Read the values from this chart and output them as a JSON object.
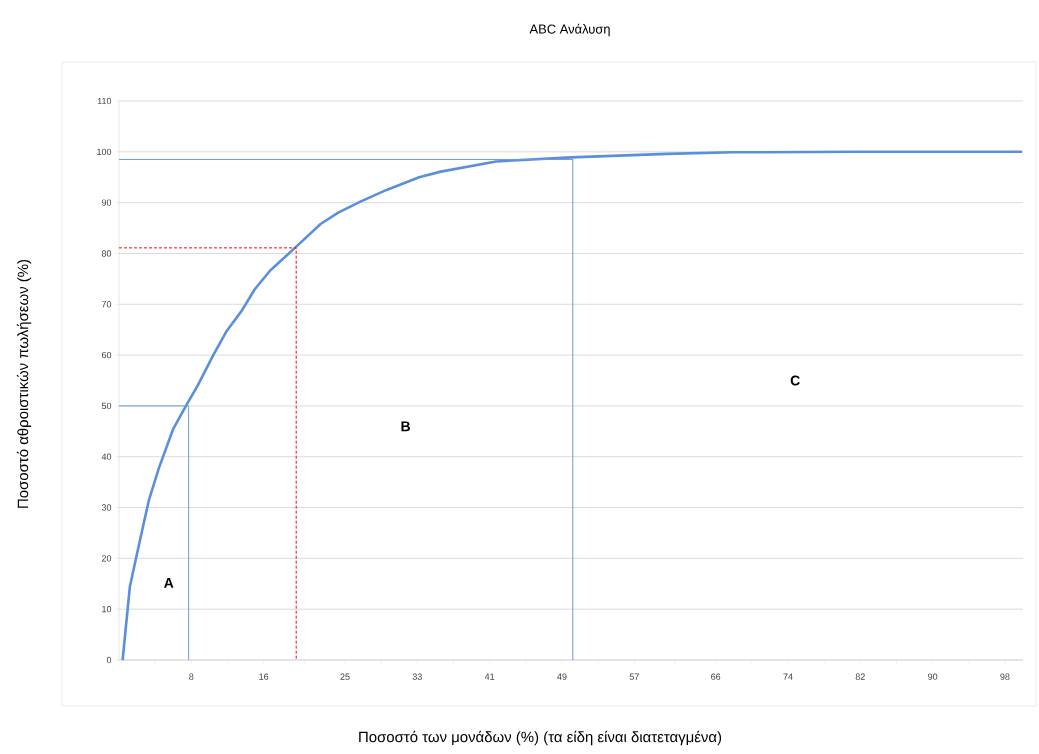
{
  "chart_data": {
    "type": "line",
    "title": "ABC Ανάλυση",
    "xlabel": "Ποσοστό των μονάδων (%) (τα είδη είναι διατεταγμένα)",
    "ylabel": "Ποσοστό αθροιστικών πωλήσεων (%)",
    "xlim": [
      0,
      100
    ],
    "ylim": [
      0,
      110
    ],
    "xticks": [
      {
        "value": 4,
        "label": null
      },
      8,
      {
        "value": 12,
        "label": null
      },
      16,
      {
        "value": 20.5,
        "label": null
      },
      25,
      {
        "value": 29,
        "label": null
      },
      33,
      {
        "value": 37,
        "label": null
      },
      41,
      {
        "value": 45,
        "label": null
      },
      49,
      {
        "value": 53,
        "label": null
      },
      57,
      {
        "value": 61.5,
        "label": null
      },
      66,
      {
        "value": 70,
        "label": null
      },
      74,
      {
        "value": 78,
        "label": null
      },
      82,
      {
        "value": 86,
        "label": null
      },
      90,
      {
        "value": 94,
        "label": null
      },
      98
    ],
    "yticks": [
      0,
      10,
      20,
      30,
      40,
      50,
      60,
      70,
      80,
      90,
      100,
      110
    ],
    "grid": "y",
    "series": [
      {
        "color": "#5b8fd9",
        "x": [
          0.4,
          1.2,
          2.1,
          3.3,
          4.4,
          6.0,
          7.5,
          8.7,
          10.4,
          11.9,
          13.6,
          15.0,
          16.7,
          19.4,
          22.3,
          24.2,
          26.7,
          29.6,
          33.2,
          35.6,
          41.7,
          50.0,
          60.6,
          67.9,
          81.4,
          99.9
        ],
        "values": [
          0,
          14.4,
          21.8,
          31.4,
          37.7,
          45.5,
          50.3,
          54,
          59.9,
          64.7,
          68.8,
          72.9,
          76.6,
          81,
          85.8,
          88,
          90.2,
          92.5,
          95,
          96.1,
          98.1,
          98.9,
          99.6,
          99.9,
          100,
          100
        ]
      },
      {
        "color": "#6b9bd8",
        "line_style": "solid",
        "x": [
          0,
          7.7,
          7.7
        ],
        "values": [
          50,
          50,
          0
        ]
      },
      {
        "color": "#ff0000",
        "line_style": "dashed",
        "x": [
          0,
          19.6,
          19.6
        ],
        "values": [
          81.1,
          81.1,
          0
        ]
      },
      {
        "color": "#6b9bd8",
        "line_style": "solid",
        "x": [
          0,
          50.2,
          50.2
        ],
        "values": [
          98.5,
          98.5,
          0
        ]
      }
    ],
    "annotations": [
      "A",
      "B",
      "C"
    ]
  }
}
